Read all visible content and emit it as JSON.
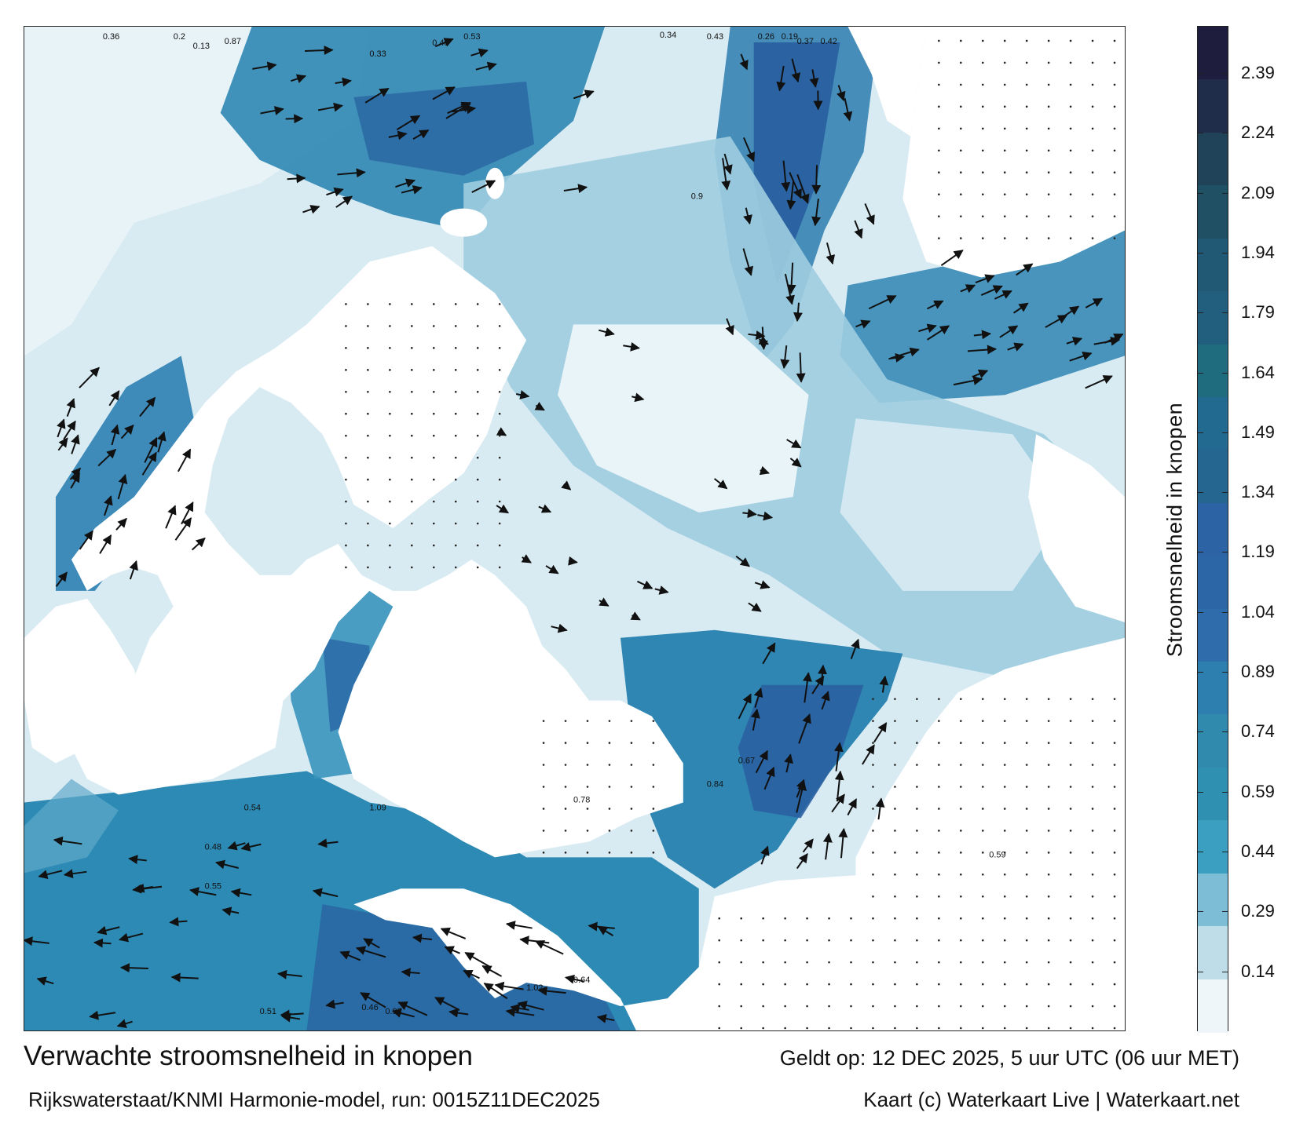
{
  "map": {
    "title": "Verwachte stroomsnelheid in knopen",
    "valid_time": "Geldt op: 12 DEC 2025, 5 uur UTC (06 uur MET)",
    "model_run": "Rijkswaterstaat/KNMI Harmonie-model, run: 0015Z11DEC2025",
    "credit": "Kaart (c) Waterkaart Live | Waterkaart.net",
    "colors": {
      "land": "#ffffff",
      "low": "#e6f1f6",
      "mid": "#2f8fb5",
      "high": "#2a5f9e",
      "arrow": "#111111"
    },
    "sample_labels": [
      "0.36",
      "0.2",
      "0.13",
      "0.87",
      "0.33",
      "0.48",
      "0.53",
      "0.34",
      "0.43",
      "0.26",
      "0.19",
      "0.37",
      "0.42",
      "0.54",
      "0.48",
      "0.55",
      "1.09",
      "0.46",
      "0.97",
      "1.02",
      "0.64",
      "0.78",
      "0.59",
      "0.51",
      "0.84",
      "0.67",
      "0.9"
    ]
  },
  "colorbar": {
    "title": "Stroomsnelheid in knopen",
    "ticks": [
      "2.39",
      "2.24",
      "2.09",
      "1.94",
      "1.79",
      "1.64",
      "1.49",
      "1.34",
      "1.19",
      "1.04",
      "0.89",
      "0.74",
      "0.59",
      "0.44",
      "0.29",
      "0.14"
    ],
    "segment_colors": [
      "#1f1d3d",
      "#1f2c4a",
      "#21435a",
      "#1f5063",
      "#215873",
      "#225e7e",
      "#1f6c7e",
      "#226a8f",
      "#24668f",
      "#2b63a5",
      "#2c66a7",
      "#2f6cab",
      "#2d7fb0",
      "#2f8aae",
      "#2f90b2",
      "#3a9fc0",
      "#7dbdd6",
      "#bfdde9",
      "#eef6fa"
    ]
  }
}
